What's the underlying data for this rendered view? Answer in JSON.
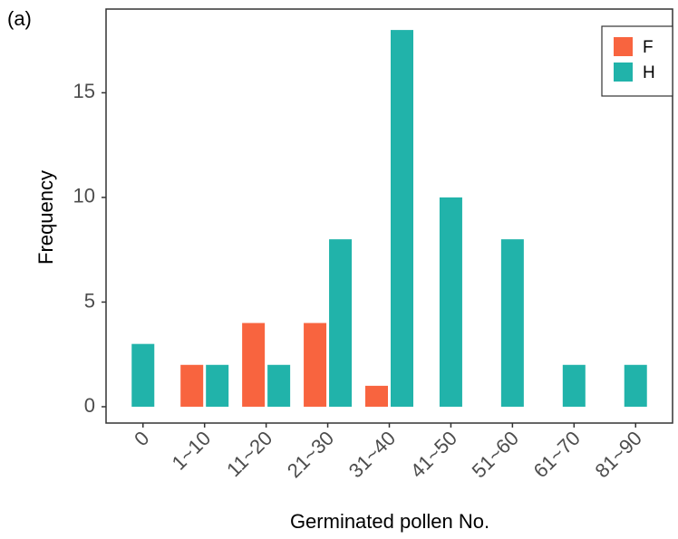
{
  "chart_data": {
    "type": "bar",
    "panel_label": "(a)",
    "x_label": "Germinated pollen No.",
    "y_label": "Frequency",
    "categories": [
      "0",
      "1~10",
      "11~20",
      "21~30",
      "31~40",
      "41~50",
      "51~60",
      "61~70",
      "81~90"
    ],
    "series": [
      {
        "name": "F",
        "color": "#f8643f",
        "values": [
          null,
          2,
          4,
          4,
          1,
          null,
          null,
          null,
          null
        ]
      },
      {
        "name": "H",
        "color": "#21b3aa",
        "values": [
          3,
          2,
          2,
          8,
          18,
          10,
          8,
          2,
          2
        ]
      }
    ],
    "ylim": [
      -0.78,
      19.0
    ],
    "yticks": [
      0,
      5,
      10,
      15
    ],
    "legend": "top-right"
  }
}
